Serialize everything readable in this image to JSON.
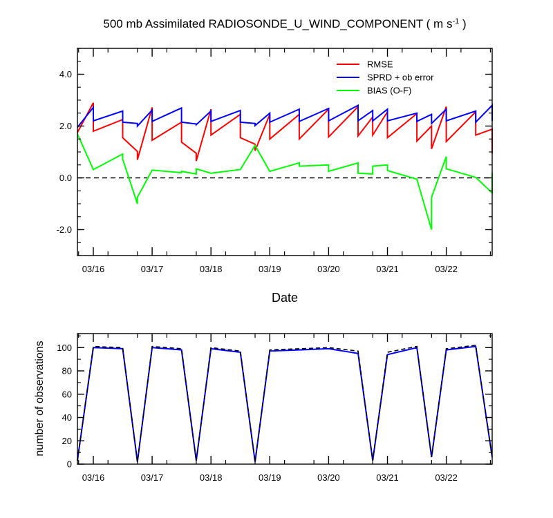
{
  "chart_data": [
    {
      "type": "line",
      "title": "500 mb Assimilated RADIOSONDE_U_WIND_COMPONENT ( m s",
      "title_unit_exp": "-1",
      "title_close": " )",
      "xlabel": "Date",
      "ylabel": "",
      "x_ticks": [
        "03/16",
        "03/17",
        "03/18",
        "03/19",
        "03/20",
        "03/21",
        "03/22"
      ],
      "y_ticks": [
        "-2.0",
        "0.0",
        "2.0",
        "4.0"
      ],
      "xlim": [
        -0.27,
        6.78
      ],
      "ylim": [
        -3.0,
        5.0
      ],
      "reference_line": 0.0,
      "legend": {
        "position": "top-right",
        "entries": [
          "RMSE",
          "SPRD + ob error",
          "BIAS (O-F)"
        ]
      },
      "series": [
        {
          "name": "RMSE",
          "color": "#ff0000",
          "x": [
            -0.27,
            0.0,
            0.0,
            0.5,
            0.5,
            0.75,
            0.75,
            1.0,
            1.0,
            1.5,
            1.5,
            1.75,
            1.75,
            2.0,
            2.0,
            2.5,
            2.5,
            2.75,
            2.75,
            3.0,
            3.0,
            3.5,
            3.5,
            4.0,
            4.0,
            4.5,
            4.5,
            4.75,
            4.75,
            5.0,
            5.0,
            5.5,
            5.5,
            5.75,
            5.75,
            6.0,
            6.0,
            6.5,
            6.5,
            6.78,
            6.78
          ],
          "values": [
            1.75,
            2.9,
            1.8,
            2.25,
            1.55,
            1.02,
            0.7,
            2.72,
            1.45,
            2.15,
            1.38,
            0.95,
            0.65,
            2.65,
            1.65,
            2.45,
            1.55,
            1.3,
            1.05,
            2.45,
            1.5,
            2.45,
            1.5,
            2.65,
            1.58,
            2.75,
            1.62,
            2.35,
            1.65,
            2.55,
            1.55,
            2.48,
            1.42,
            2.0,
            1.12,
            2.75,
            1.4,
            2.55,
            1.65,
            1.88,
            0.95
          ]
        },
        {
          "name": "SPRD + ob error",
          "color": "#0000ff",
          "x": [
            -0.27,
            0.0,
            0.0,
            0.5,
            0.5,
            0.75,
            0.75,
            1.0,
            1.0,
            1.5,
            1.5,
            1.75,
            1.75,
            2.0,
            2.0,
            2.5,
            2.5,
            2.75,
            2.75,
            3.0,
            3.0,
            3.5,
            3.5,
            4.0,
            4.0,
            4.5,
            4.5,
            4.75,
            4.75,
            5.0,
            5.0,
            5.5,
            5.5,
            5.75,
            5.75,
            6.0,
            6.0,
            6.5,
            6.5,
            6.78,
            6.78
          ],
          "values": [
            1.95,
            2.72,
            2.2,
            2.58,
            2.15,
            2.1,
            2.0,
            2.62,
            2.18,
            2.7,
            2.15,
            2.08,
            2.05,
            2.58,
            2.18,
            2.6,
            2.15,
            2.1,
            2.02,
            2.5,
            2.15,
            2.65,
            2.18,
            2.68,
            2.2,
            2.8,
            2.2,
            2.6,
            2.2,
            2.65,
            2.2,
            2.5,
            2.18,
            2.45,
            2.1,
            2.65,
            2.2,
            2.58,
            2.15,
            2.8,
            2.2
          ]
        },
        {
          "name": "BIAS (O-F)",
          "color": "#00ff00",
          "x": [
            -0.27,
            0.0,
            0.5,
            0.5,
            0.75,
            0.75,
            1.0,
            1.5,
            1.5,
            1.75,
            1.75,
            2.0,
            2.5,
            2.75,
            3.0,
            3.5,
            3.5,
            4.0,
            4.0,
            4.5,
            4.5,
            4.75,
            4.75,
            5.0,
            5.0,
            5.5,
            5.75,
            5.75,
            6.0,
            6.0,
            6.5,
            6.78,
            6.78
          ],
          "values": [
            1.7,
            0.32,
            0.92,
            0.72,
            -1.0,
            -0.75,
            0.3,
            0.2,
            0.25,
            0.15,
            0.35,
            0.18,
            0.32,
            1.25,
            0.25,
            0.58,
            0.45,
            0.5,
            0.25,
            0.58,
            0.18,
            0.15,
            0.45,
            0.5,
            0.28,
            -0.05,
            -2.0,
            -0.75,
            0.82,
            0.35,
            0.02,
            -0.58,
            0.2
          ]
        }
      ]
    },
    {
      "type": "line",
      "title": "",
      "xlabel": "",
      "ylabel": "number of observations",
      "x_ticks": [
        "03/16",
        "03/17",
        "03/18",
        "03/19",
        "03/20",
        "03/21",
        "03/22"
      ],
      "y_ticks": [
        "0",
        "20",
        "40",
        "60",
        "80",
        "100"
      ],
      "xlim": [
        -0.27,
        6.78
      ],
      "ylim": [
        0,
        112
      ],
      "series": [
        {
          "style": "solid",
          "color": "#0000ff",
          "x": [
            -0.27,
            0.0,
            0.5,
            0.75,
            1.0,
            1.5,
            1.75,
            2.0,
            2.5,
            2.75,
            3.0,
            3.5,
            4.0,
            4.5,
            4.75,
            5.0,
            5.5,
            5.75,
            6.0,
            6.5,
            6.78
          ],
          "values": [
            3,
            100,
            99,
            2,
            100,
            98,
            3,
            99,
            96,
            2,
            97,
            98,
            99,
            95,
            3,
            94,
            100,
            6,
            98,
            101,
            6
          ]
        },
        {
          "style": "dashed",
          "color": "#000000",
          "x": [
            -0.27,
            0.0,
            0.5,
            0.75,
            1.0,
            1.5,
            1.75,
            2.0,
            2.5,
            2.75,
            3.0,
            3.5,
            4.0,
            4.5,
            4.75,
            5.0,
            5.5,
            5.75,
            6.0,
            6.5,
            6.78
          ],
          "values": [
            3,
            101,
            100,
            2,
            101,
            99,
            3,
            100,
            97,
            2,
            98,
            99,
            100,
            97,
            3,
            96,
            101,
            6,
            99,
            102,
            6
          ]
        }
      ]
    }
  ]
}
